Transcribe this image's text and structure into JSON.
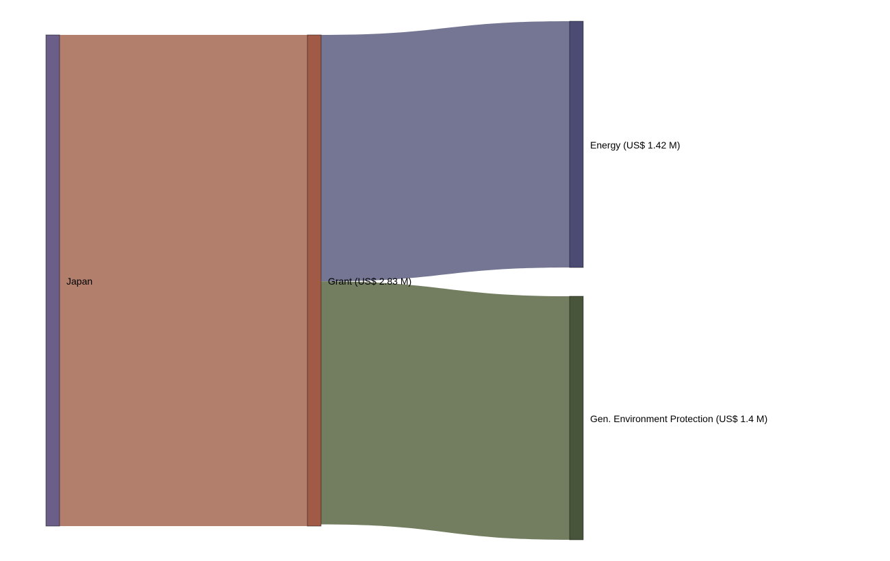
{
  "nodes": [
    {
      "id": "japan",
      "label": "Japan",
      "value": 2.83,
      "color": "#6b5f8a"
    },
    {
      "id": "grant",
      "label": "Grant (US$ 2.83 M)",
      "value": 2.83,
      "color": "#a05a45"
    },
    {
      "id": "energy",
      "label": "Energy (US$ 1.42 M)",
      "value": 1.42,
      "color": "#4b4b74"
    },
    {
      "id": "env",
      "label": "Gen. Environment Protection (US$ 1.4 M)",
      "value": 1.4,
      "color": "#48553a"
    }
  ],
  "links": [
    {
      "source": "japan",
      "target": "grant",
      "value": 2.83,
      "color": "#b37f6d"
    },
    {
      "source": "grant",
      "target": "energy",
      "value": 1.42,
      "color": "#747693"
    },
    {
      "source": "grant",
      "target": "env",
      "value": 1.4,
      "color": "#737e61"
    }
  ]
}
